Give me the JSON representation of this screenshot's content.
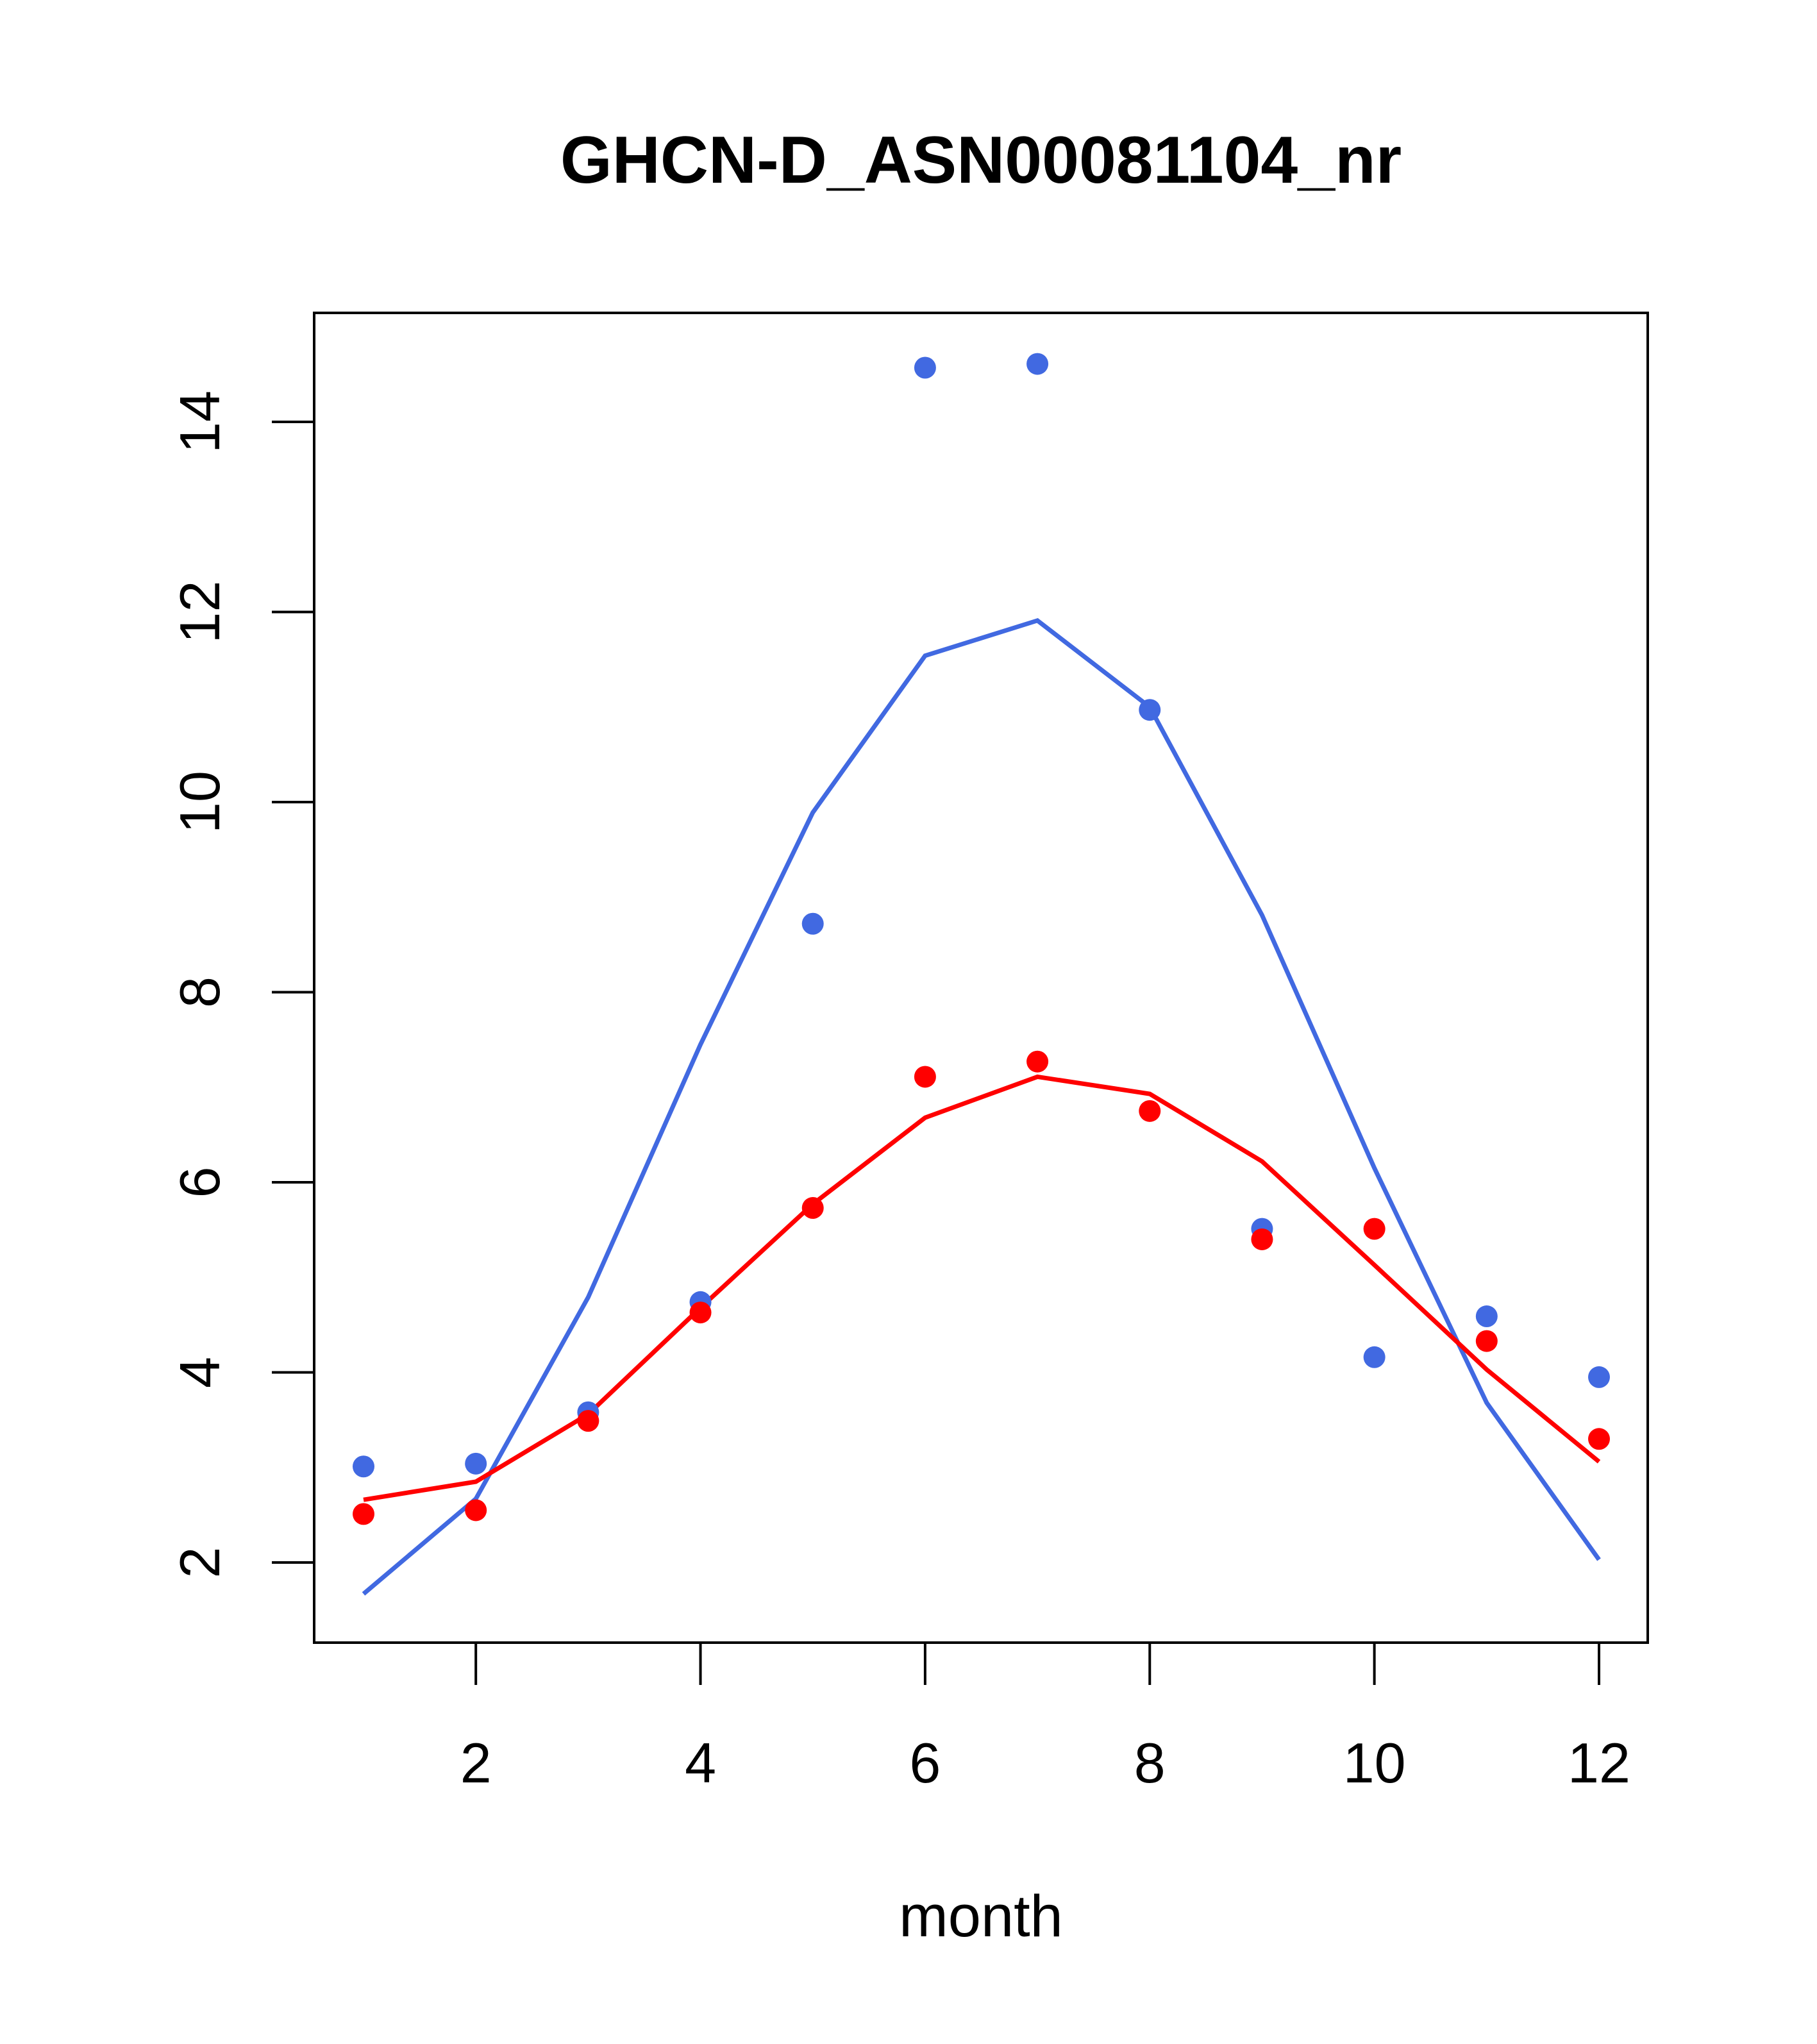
{
  "chart_data": {
    "type": "scatter",
    "title": "GHCN-D_ASN00081104_nr",
    "xlabel": "month",
    "ylabel": "",
    "xlim": [
      0.78,
      12.44
    ],
    "ylim": [
      1.17,
      15.17
    ],
    "xticks": [
      2,
      4,
      6,
      8,
      10,
      12
    ],
    "yticks": [
      2,
      4,
      6,
      8,
      10,
      12,
      14
    ],
    "x": [
      1,
      2,
      3,
      4,
      5,
      6,
      7,
      8,
      9,
      10,
      11,
      12
    ],
    "series": [
      {
        "name": "blue points",
        "kind": "points",
        "color": "#4169E1",
        "values": [
          3.01,
          3.04,
          3.58,
          4.74,
          8.72,
          14.57,
          14.61,
          10.97,
          5.51,
          4.16,
          4.59,
          3.95
        ]
      },
      {
        "name": "red points",
        "kind": "points",
        "color": "#FF0000",
        "values": [
          2.51,
          2.55,
          3.49,
          4.63,
          5.73,
          7.11,
          7.27,
          6.75,
          5.4,
          5.51,
          4.33,
          3.3
        ]
      },
      {
        "name": "blue line",
        "kind": "line",
        "color": "#4169E1",
        "values": [
          1.67,
          2.67,
          4.79,
          7.45,
          9.89,
          11.54,
          11.91,
          11.0,
          8.81,
          6.15,
          3.68,
          2.03
        ]
      },
      {
        "name": "red line",
        "kind": "line",
        "color": "#FF0000",
        "values": [
          2.66,
          2.85,
          3.56,
          4.68,
          5.77,
          6.68,
          7.11,
          6.93,
          6.22,
          5.13,
          4.03,
          3.06
        ]
      }
    ],
    "grid": false,
    "legend": "none"
  }
}
